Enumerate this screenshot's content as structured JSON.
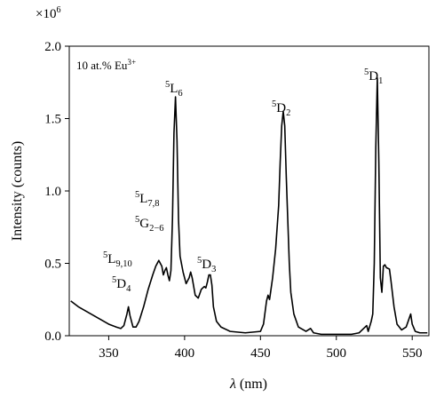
{
  "chart_data": {
    "type": "line",
    "multiplier": {
      "base": "×10",
      "sup": "6"
    },
    "x_label": {
      "symbol": "λ",
      "unit": "(nm)"
    },
    "y_label": "Intensity (counts)",
    "annotations": [
      {
        "base": "10 at.% Eu",
        "sup": "3+"
      },
      {
        "pre": "5",
        "base": "L",
        "sub": "6"
      },
      {
        "pre": "5",
        "base": "D",
        "sub": "2"
      },
      {
        "pre": "5",
        "base": "D",
        "sub": "1"
      },
      {
        "pre": "5",
        "base": "L",
        "sub": "7,8"
      },
      {
        "pre": "5",
        "base": "G",
        "sub": "2−6"
      },
      {
        "pre": "5",
        "base": "D",
        "sub": "3"
      },
      {
        "pre": "5",
        "base": "L",
        "sub": "9,10"
      },
      {
        "pre": "5",
        "base": "D",
        "sub": "4"
      }
    ],
    "color": "#000000",
    "xlim": [
      324,
      561
    ],
    "ylim": [
      0,
      2
    ],
    "xticks": [
      350,
      400,
      450,
      500,
      550
    ],
    "yticks": [
      {
        "value": 0,
        "label": "0.0"
      },
      0.5,
      {
        "value": 1,
        "label": "1.0"
      },
      1.5,
      {
        "value": 2,
        "label": "2.0"
      }
    ],
    "x": [
      325,
      330,
      335,
      340,
      345,
      350,
      355,
      358,
      360,
      362,
      363,
      364,
      366,
      368,
      370,
      373,
      376,
      379,
      381,
      383,
      385,
      386,
      387,
      388,
      389,
      390,
      391,
      392,
      393,
      394,
      395,
      396,
      397,
      399,
      401,
      403,
      404,
      405,
      407,
      409,
      411,
      413,
      414,
      415,
      416,
      417,
      418,
      419,
      421,
      424,
      430,
      440,
      450,
      452,
      454,
      455,
      456,
      458,
      460,
      462,
      463,
      464,
      465,
      466,
      467,
      468,
      469,
      470,
      472,
      475,
      480,
      483,
      485,
      490,
      500,
      510,
      515,
      518,
      520,
      521,
      523,
      524,
      525,
      526,
      527,
      528,
      529,
      530,
      531,
      532,
      533,
      535,
      536,
      538,
      540,
      543,
      546,
      548,
      549,
      550,
      552,
      555,
      560
    ],
    "values": [
      0.24,
      0.2,
      0.17,
      0.14,
      0.11,
      0.08,
      0.06,
      0.05,
      0.07,
      0.15,
      0.2,
      0.14,
      0.06,
      0.06,
      0.1,
      0.2,
      0.32,
      0.42,
      0.48,
      0.52,
      0.48,
      0.42,
      0.45,
      0.47,
      0.42,
      0.38,
      0.45,
      0.8,
      1.4,
      1.65,
      1.35,
      0.8,
      0.55,
      0.44,
      0.36,
      0.4,
      0.44,
      0.4,
      0.28,
      0.26,
      0.32,
      0.34,
      0.33,
      0.37,
      0.42,
      0.42,
      0.35,
      0.2,
      0.1,
      0.06,
      0.03,
      0.02,
      0.03,
      0.08,
      0.24,
      0.28,
      0.25,
      0.4,
      0.6,
      0.9,
      1.2,
      1.45,
      1.55,
      1.45,
      1.1,
      0.8,
      0.5,
      0.3,
      0.15,
      0.06,
      0.03,
      0.05,
      0.02,
      0.01,
      0.01,
      0.01,
      0.02,
      0.05,
      0.07,
      0.03,
      0.1,
      0.15,
      0.5,
      1.3,
      1.78,
      1.2,
      0.4,
      0.3,
      0.48,
      0.49,
      0.47,
      0.46,
      0.38,
      0.2,
      0.08,
      0.04,
      0.06,
      0.12,
      0.15,
      0.08,
      0.03,
      0.02,
      0.02
    ]
  }
}
